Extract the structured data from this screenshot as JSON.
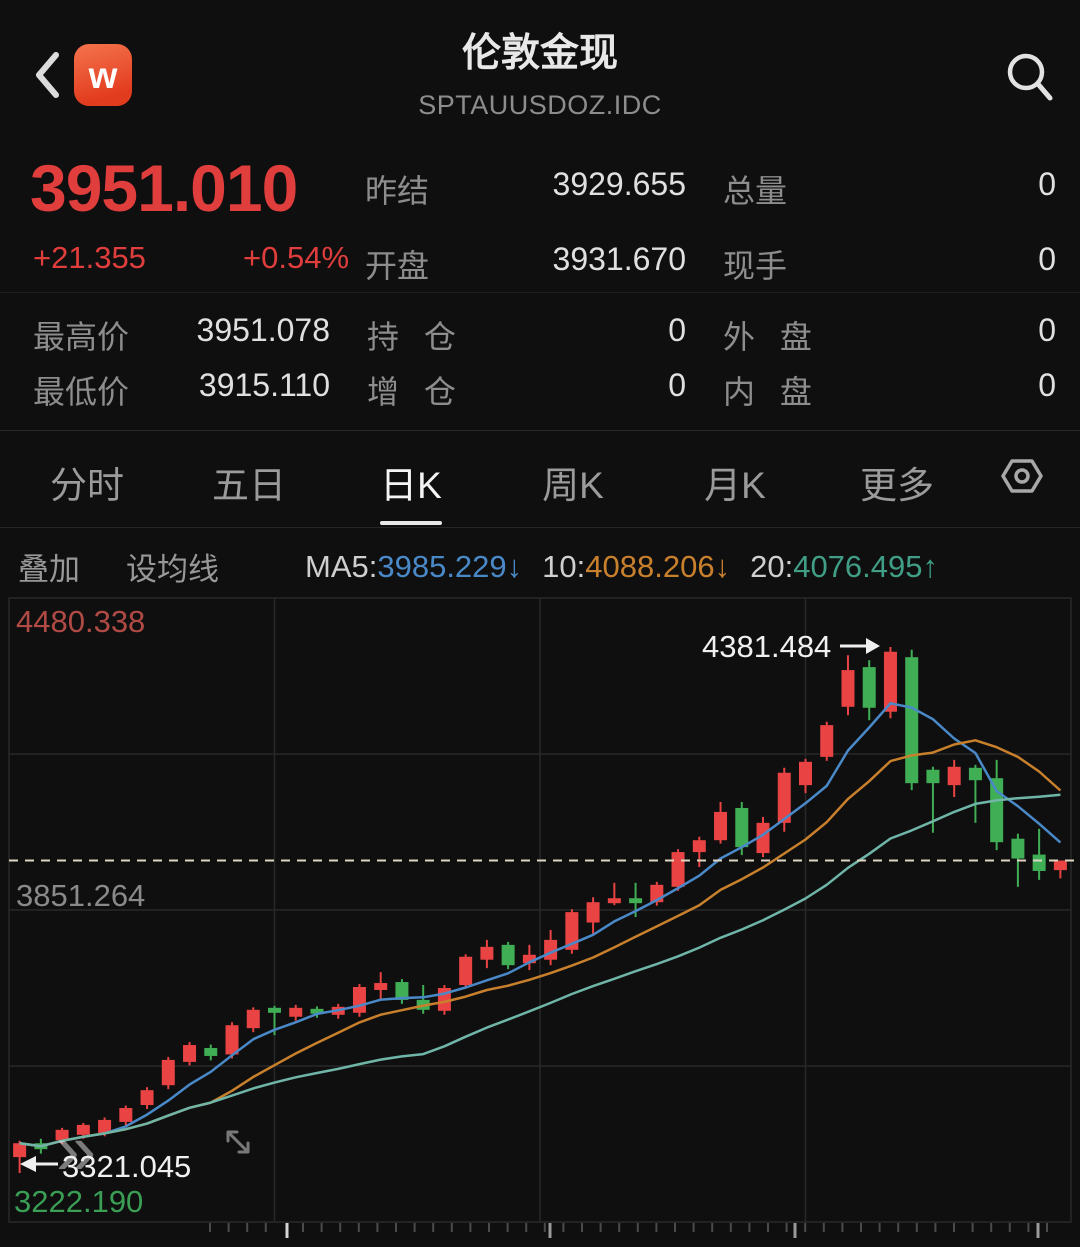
{
  "header": {
    "title": "伦敦金现",
    "subtitle": "SPTAUUSDOZ.IDC",
    "logo_letter": "w"
  },
  "quote": {
    "last": "3951.010",
    "change": "+21.355",
    "change_pct": "+0.54%",
    "prev_close_label": "昨结",
    "prev_close": "3929.655",
    "open_label": "开盘",
    "open": "3931.670",
    "volume_label": "总量",
    "volume": "0",
    "cur_vol_label": "现手",
    "cur_vol": "0",
    "high_label": "最高价",
    "high": "3951.078",
    "low_label": "最低价",
    "low": "3915.110",
    "oi_label": "持 仓",
    "oi": "0",
    "oi_chg_label": "增 仓",
    "oi_chg": "0",
    "outer_label": "外 盘",
    "outer": "0",
    "inner_label": "内 盘",
    "inner": "0"
  },
  "tabs": [
    {
      "key": "minute",
      "label": "分时",
      "active": false
    },
    {
      "key": "five-day",
      "label": "五日",
      "active": false
    },
    {
      "key": "daily-k",
      "label": "日K",
      "active": true
    },
    {
      "key": "weekly-k",
      "label": "周K",
      "active": false
    },
    {
      "key": "monthly-k",
      "label": "月K",
      "active": false
    },
    {
      "key": "more",
      "label": "更多",
      "active": false
    }
  ],
  "ma_toolbar": {
    "overlay_label": "叠加",
    "set_ma_label": "设均线",
    "ma5_name": "MA5:",
    "ma5_value": "3985.229",
    "ma5_dir": "↓",
    "ma10_name": "10:",
    "ma10_value": "4088.206",
    "ma10_dir": "↓",
    "ma20_name": "20:",
    "ma20_value": "4076.495",
    "ma20_dir": "↑"
  },
  "chart_data": {
    "type": "candlestick",
    "y_axis": {
      "max": 4480.338,
      "min": 3222.19
    },
    "labels": {
      "max": "4480.338",
      "mid": "3851.264",
      "min": "3222.190"
    },
    "annotations": {
      "period_high": "4381.484",
      "period_low": "3321.045"
    },
    "current_price": 3951.01,
    "ma_periods": [
      5,
      10,
      20
    ],
    "controls": {
      "expand": "»"
    },
    "colors": {
      "up": "#ea4343",
      "down": "#3fae55",
      "ma5": "#4a89c8",
      "ma10": "#c9802c",
      "ma20": "#6fb5a8",
      "grid": "#282828",
      "dashed": "#ded5c2",
      "label_max": "#b04a45",
      "label_mid": "#8a8a8a",
      "label_min": "#3a9e55",
      "annotation": "#f0f0f0",
      "tick_minor": "#4b4b4b",
      "tick_major": "#9a9a9a",
      "tick_bright": "#d5d5d5"
    },
    "candles": [
      [
        3353.0,
        3386.0,
        3321.045,
        3381.0
      ],
      [
        3381.0,
        3390.0,
        3360.0,
        3369.0
      ],
      [
        3387.0,
        3412.0,
        3380.0,
        3408.0
      ],
      [
        3398.0,
        3422.0,
        3390.0,
        3418.0
      ],
      [
        3402.0,
        3433.0,
        3395.0,
        3428.0
      ],
      [
        3424.0,
        3457.0,
        3417.0,
        3452.0
      ],
      [
        3458.0,
        3494.0,
        3450.0,
        3488.0
      ],
      [
        3498.0,
        3555.0,
        3490.0,
        3549.0
      ],
      [
        3545.0,
        3585.0,
        3538.0,
        3579.0
      ],
      [
        3573.0,
        3580.0,
        3548.0,
        3557.0
      ],
      [
        3560.0,
        3625.0,
        3552.0,
        3619.0
      ],
      [
        3613.0,
        3655.0,
        3605.0,
        3650.0
      ],
      [
        3654.0,
        3658.0,
        3599.0,
        3644.0
      ],
      [
        3636.0,
        3660.0,
        3628.0,
        3654.0
      ],
      [
        3652.0,
        3657.0,
        3634.0,
        3642.0
      ],
      [
        3640.0,
        3662.0,
        3632.0,
        3656.0
      ],
      [
        3644.0,
        3702.0,
        3636.0,
        3696.0
      ],
      [
        3690.0,
        3726.0,
        3670.0,
        3704.0
      ],
      [
        3706.0,
        3712.0,
        3662.0,
        3670.0
      ],
      [
        3670.0,
        3700.0,
        3642.0,
        3650.0
      ],
      [
        3648.0,
        3700.0,
        3640.0,
        3694.0
      ],
      [
        3700.0,
        3762.0,
        3693.0,
        3757.0
      ],
      [
        3751.0,
        3791.0,
        3734.0,
        3777.0
      ],
      [
        3781.0,
        3787.0,
        3732.0,
        3740.0
      ],
      [
        3744.0,
        3781.0,
        3730.0,
        3761.0
      ],
      [
        3751.0,
        3811.0,
        3740.0,
        3791.0
      ],
      [
        3771.0,
        3853.0,
        3763.0,
        3847.0
      ],
      [
        3826.0,
        3877.0,
        3800.0,
        3867.0
      ],
      [
        3865.0,
        3906.0,
        3861.0,
        3875.0
      ],
      [
        3875.0,
        3906.0,
        3837.0,
        3865.0
      ],
      [
        3867.0,
        3908.0,
        3860.0,
        3902.0
      ],
      [
        3898.0,
        3974.0,
        3890.0,
        3968.0
      ],
      [
        3968.0,
        3999.0,
        3938.0,
        3992.0
      ],
      [
        3992.0,
        4069.0,
        3985.0,
        4049.0
      ],
      [
        4057.0,
        4069.0,
        3962.0,
        3978.0
      ],
      [
        3966.0,
        4039.0,
        3958.0,
        4027.0
      ],
      [
        4027.0,
        4138.0,
        4009.0,
        4128.0
      ],
      [
        4103.0,
        4156.0,
        4087.0,
        4150.0
      ],
      [
        4160.0,
        4231.0,
        4152.0,
        4224.0
      ],
      [
        4261.0,
        4365.0,
        4244.0,
        4335.0
      ],
      [
        4341.0,
        4355.0,
        4234.0,
        4259.0
      ],
      [
        4251.0,
        4381.484,
        4238.0,
        4372.0
      ],
      [
        4361.0,
        4376.0,
        4093.0,
        4107.0
      ],
      [
        4134.0,
        4140.0,
        4007.0,
        4107.0
      ],
      [
        4103.0,
        4154.0,
        4079.0,
        4140.0
      ],
      [
        4138.0,
        4144.0,
        4027.0,
        4113.0
      ],
      [
        4117.0,
        4154.0,
        3972.0,
        3988.0
      ],
      [
        3995.0,
        4005.0,
        3898.0,
        3955.0
      ],
      [
        3963.0,
        4015.0,
        3912.0,
        3930.0
      ],
      [
        3931.67,
        3951.078,
        3915.11,
        3951.01
      ]
    ]
  }
}
